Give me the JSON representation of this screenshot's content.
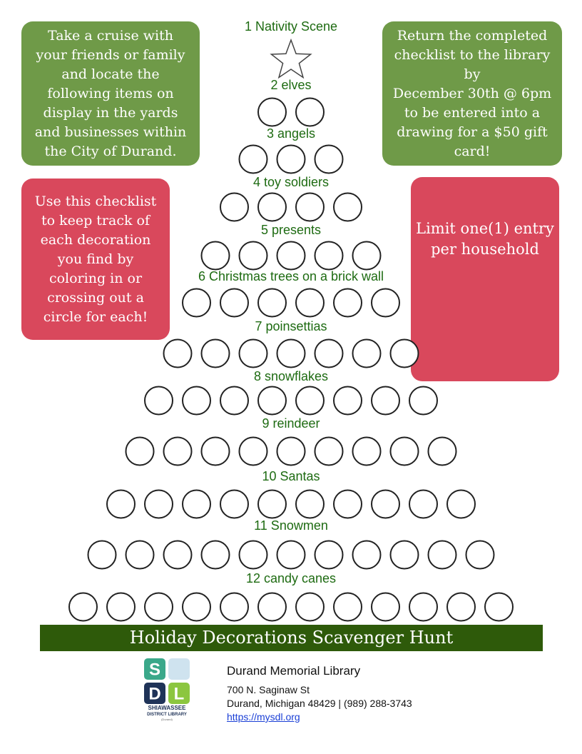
{
  "title": "Holiday Decorations Scavenger Hunt",
  "boxes": {
    "intro": [
      "Take a cruise with",
      "your friends or family",
      "and locate the",
      "following items on",
      "display in the yards",
      "and businesses within",
      "the City of Durand."
    ],
    "return": [
      "Return the completed",
      "checklist to the library",
      "by",
      "December 30th @ 6pm",
      "to be entered into a",
      "drawing for a $50 gift",
      "card!"
    ],
    "howto": [
      "Use this checklist",
      "to keep track of",
      "each decoration",
      "you find by",
      "coloring in or",
      "crossing out a",
      "circle for each!"
    ],
    "limit": [
      "Limit one(1) entry",
      "per household"
    ]
  },
  "items": [
    "1 Nativity Scene",
    "2 elves",
    "3 angels",
    "4 toy soldiers",
    "5 presents",
    "6 Christmas trees on a brick wall",
    "7 poinsettias",
    "8 snowflakes",
    "9 reindeer",
    "10 Santas",
    "11 Snowmen",
    "12 candy canes"
  ],
  "logo": {
    "letters": [
      "S",
      "D",
      "L"
    ],
    "name": "SHIAWASSEE",
    "sub": "DISTRICT LIBRARY",
    "branch": "(Durand)"
  },
  "footer": {
    "library": "Durand Memorial Library",
    "address": "700 N. Saginaw St",
    "city": "Durand, Michigan 48429 | (989) 288-3743",
    "url": "https://mysdl.org"
  }
}
